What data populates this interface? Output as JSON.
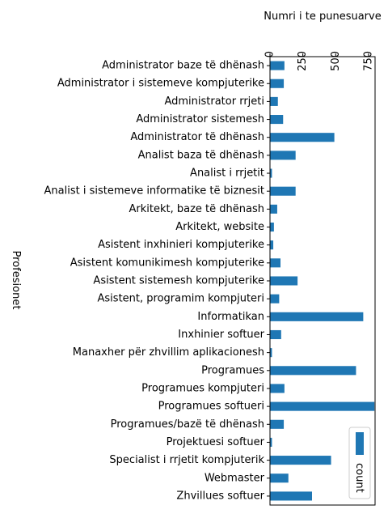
{
  "chart_data": {
    "type": "bar",
    "orientation": "horizontal",
    "xlabel": "Numri i te punesuarve",
    "ylabel": "Profesionet",
    "xaxis_position": "top",
    "xtick_rotation": -90,
    "xlim": [
      0,
      800
    ],
    "xticks": [
      0,
      250,
      500,
      750
    ],
    "xtick_labels": [
      "0",
      "250",
      "500",
      "750"
    ],
    "grid": false,
    "legend": {
      "position": "bottom-right",
      "rotated": true,
      "entries": [
        "count"
      ]
    },
    "colors": {
      "bar": "#1f77b4"
    },
    "categories": [
      "Administrator baze të dhënash",
      "Administrator i sistemeve kompjuterike",
      "Administrator rrjeti",
      "Administrator sistemesh",
      "Administrator të dhënash",
      "Analist baza të dhënash",
      "Analist i rrjetit",
      "Analist i sistemeve informatike të biznesit",
      "Arkitekt, baze të dhënash",
      "Arkitekt, website",
      "Asistent inxhinieri kompjuterike",
      "Asistent komunikimesh kompjuterike",
      "Asistent sistemesh kompjuterike",
      "Asistent, programim kompjuteri",
      "Informatikan",
      "Inxhinier softuer",
      "Manaxher për zhvillim aplikacionesh",
      "Programues",
      "Programues kompjuteri",
      "Programues softueri",
      "Programues/bazë të dhënash",
      "Projektuesi softuer",
      "Specialist i rrjetit kompjuterik",
      "Webmaster",
      "Zhvillues softuer"
    ],
    "series": [
      {
        "name": "count",
        "values": [
          110,
          105,
          60,
          100,
          490,
          195,
          15,
          195,
          55,
          30,
          25,
          80,
          210,
          70,
          710,
          85,
          15,
          655,
          110,
          795,
          105,
          15,
          465,
          140,
          320
        ]
      }
    ]
  }
}
